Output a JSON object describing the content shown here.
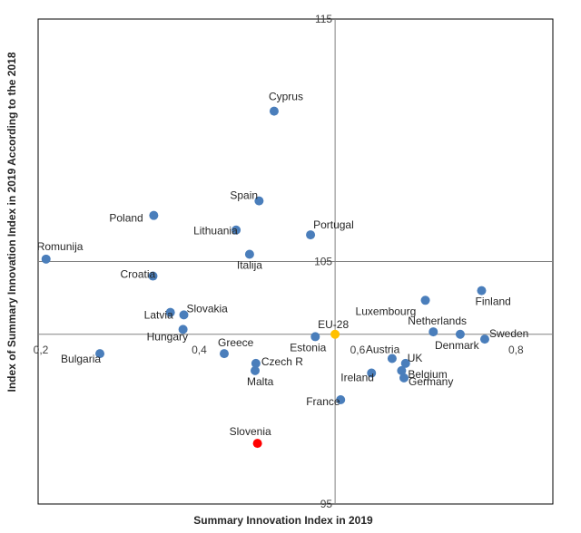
{
  "chart_data": {
    "type": "scatter",
    "title": "",
    "xlabel": "Summary Innovation Index in 2019",
    "ylabel": "Index of Summary Innovation Index in 2019 According to the 2018",
    "xlim": [
      0.2,
      0.85
    ],
    "ylim": [
      95,
      115
    ],
    "x_ticks": [
      {
        "value": 0.2,
        "label": "0,2"
      },
      {
        "value": 0.4,
        "label": "0,4"
      },
      {
        "value": 0.6,
        "label": "0,6"
      },
      {
        "value": 0.8,
        "label": "0,8"
      }
    ],
    "y_ticks": [
      {
        "value": 95,
        "label": "95"
      },
      {
        "value": 105,
        "label": "105"
      },
      {
        "value": 115,
        "label": "115"
      }
    ],
    "reference_lines": {
      "x": 0.575,
      "y": 102
    },
    "grid": false,
    "colors": {
      "default": "#4a7ebb",
      "highlight": "#ff0000",
      "reference": "#ffc000",
      "axis": "#808080",
      "frame": "#000000"
    },
    "points": [
      {
        "name": "Cyprus",
        "x": 0.498,
        "y": 111.2,
        "color": "#4a7ebb"
      },
      {
        "name": "Spain",
        "x": 0.479,
        "y": 107.5,
        "color": "#4a7ebb"
      },
      {
        "name": "Poland",
        "x": 0.346,
        "y": 106.9,
        "color": "#4a7ebb"
      },
      {
        "name": "Lithuania",
        "x": 0.45,
        "y": 106.3,
        "color": "#4a7ebb"
      },
      {
        "name": "Portugal",
        "x": 0.544,
        "y": 106.1,
        "color": "#4a7ebb"
      },
      {
        "name": "Romunija",
        "x": 0.21,
        "y": 105.1,
        "color": "#4a7ebb"
      },
      {
        "name": "Italija",
        "x": 0.467,
        "y": 105.3,
        "color": "#4a7ebb"
      },
      {
        "name": "Croatia",
        "x": 0.345,
        "y": 104.4,
        "color": "#4a7ebb"
      },
      {
        "name": "Latvia",
        "x": 0.367,
        "y": 102.9,
        "color": "#4a7ebb"
      },
      {
        "name": "Slovakia",
        "x": 0.384,
        "y": 102.8,
        "color": "#4a7ebb"
      },
      {
        "name": "Hungary",
        "x": 0.383,
        "y": 102.2,
        "color": "#4a7ebb"
      },
      {
        "name": "Bulgaria",
        "x": 0.278,
        "y": 101.2,
        "color": "#4a7ebb"
      },
      {
        "name": "Greece",
        "x": 0.435,
        "y": 101.2,
        "color": "#4a7ebb"
      },
      {
        "name": "Czech R",
        "x": 0.475,
        "y": 100.8,
        "color": "#4a7ebb"
      },
      {
        "name": "Malta",
        "x": 0.474,
        "y": 100.5,
        "color": "#4a7ebb"
      },
      {
        "name": "Estonia",
        "x": 0.55,
        "y": 101.9,
        "color": "#4a7ebb"
      },
      {
        "name": "EU-28",
        "x": 0.575,
        "y": 102.0,
        "color": "#ffc000"
      },
      {
        "name": "Luxembourg",
        "x": 0.689,
        "y": 103.4,
        "color": "#4a7ebb"
      },
      {
        "name": "Finland",
        "x": 0.76,
        "y": 103.8,
        "color": "#4a7ebb"
      },
      {
        "name": "Netherlands",
        "x": 0.699,
        "y": 102.1,
        "color": "#4a7ebb"
      },
      {
        "name": "Denmark",
        "x": 0.733,
        "y": 102.0,
        "color": "#4a7ebb"
      },
      {
        "name": "Sweden",
        "x": 0.764,
        "y": 101.8,
        "color": "#4a7ebb"
      },
      {
        "name": "Austria",
        "x": 0.647,
        "y": 101.0,
        "color": "#4a7ebb"
      },
      {
        "name": "UK",
        "x": 0.664,
        "y": 100.8,
        "color": "#4a7ebb"
      },
      {
        "name": "Belgium",
        "x": 0.659,
        "y": 100.5,
        "color": "#4a7ebb"
      },
      {
        "name": "Ireland",
        "x": 0.621,
        "y": 100.4,
        "color": "#4a7ebb"
      },
      {
        "name": "Germany",
        "x": 0.662,
        "y": 100.2,
        "color": "#4a7ebb"
      },
      {
        "name": "France",
        "x": 0.582,
        "y": 99.3,
        "color": "#4a7ebb"
      },
      {
        "name": "Slovenia",
        "x": 0.477,
        "y": 97.5,
        "color": "#ff0000"
      }
    ]
  }
}
